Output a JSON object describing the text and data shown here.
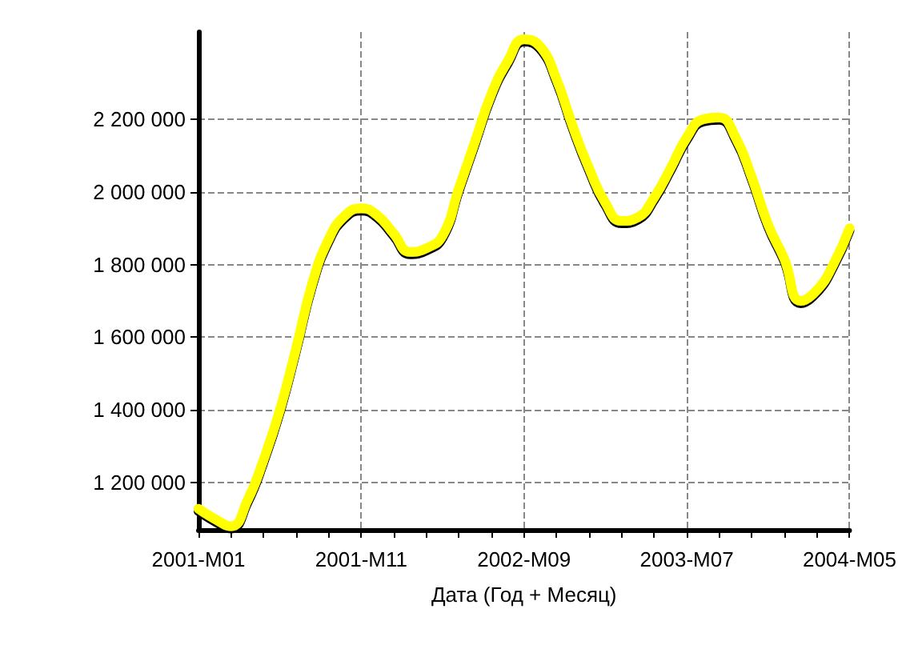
{
  "chart_data": {
    "type": "line",
    "xlabel": "Дата (Год + Месяц)",
    "categories": [
      "2001-M01",
      null,
      null,
      null,
      null,
      null,
      null,
      null,
      null,
      null,
      "2001-M11",
      null,
      null,
      null,
      null,
      null,
      null,
      null,
      null,
      null,
      "2002-M09",
      null,
      null,
      null,
      null,
      null,
      null,
      null,
      null,
      null,
      "2003-M07",
      null,
      null,
      null,
      null,
      null,
      null,
      null,
      null,
      null,
      "2004-M05"
    ],
    "series": [
      {
        "color": "#ffff00",
        "values": [
          1128000,
          1100000,
          1080000,
          1150000,
          1263000,
          1400000,
          1570000,
          1750000,
          1870000,
          1935000,
          1955000,
          1935000,
          1885000,
          1835000,
          1845000,
          1880000,
          2010000,
          2140000,
          2270000,
          2360000,
          2420000,
          2400000,
          2310000,
          2180000,
          2065000,
          1970000,
          1920000,
          1930000,
          1985000,
          2065000,
          2150000,
          2200000,
          2205000,
          2150000,
          2040000,
          1910000,
          1815000,
          1700000,
          1730000,
          1800000,
          1900000
        ]
      }
    ],
    "ylim": [
      1070000,
      2440000
    ],
    "yticks": [
      {
        "value": 1200000,
        "label": "1 200 000"
      },
      {
        "value": 1400000,
        "label": "1 400 000"
      },
      {
        "value": 1600000,
        "label": "1 600 000"
      },
      {
        "value": 1800000,
        "label": "1 800 000"
      },
      {
        "value": 2000000,
        "label": "2 000 000"
      },
      {
        "value": 2200000,
        "label": "2 200 000"
      }
    ],
    "grid": true,
    "marker": "none",
    "line_style": "solid"
  }
}
